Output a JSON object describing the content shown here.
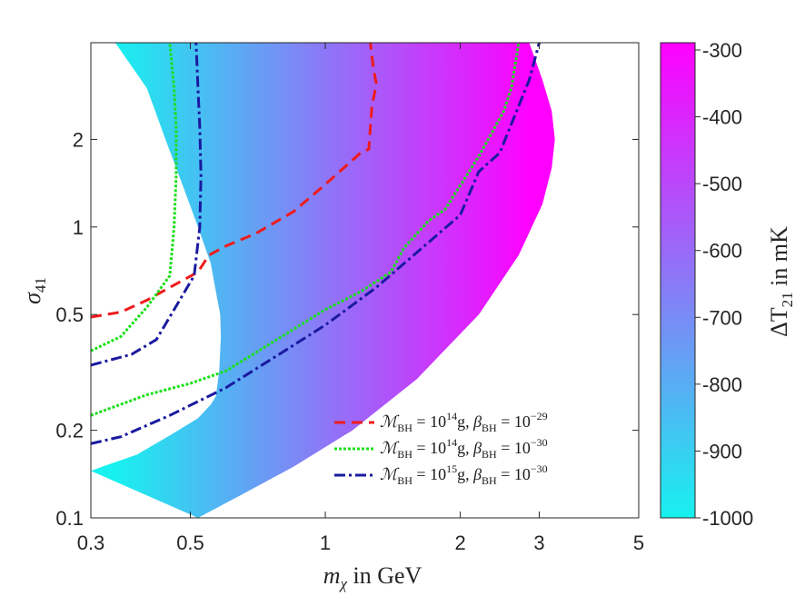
{
  "chart_data": {
    "type": "line",
    "x_scale": "log",
    "y_scale": "log",
    "xlim": [
      0.3,
      5
    ],
    "ylim": [
      0.1,
      4.3
    ],
    "xticks": [
      {
        "value": 0.3,
        "label": "0.3"
      },
      {
        "value": 0.5,
        "label": "0.5"
      },
      {
        "value": 1,
        "label": "1"
      },
      {
        "value": 2,
        "label": "2"
      },
      {
        "value": 3,
        "label": "3"
      },
      {
        "value": 5,
        "label": "5"
      }
    ],
    "yticks": [
      {
        "value": 0.1,
        "label": "0.1"
      },
      {
        "value": 0.2,
        "label": "0.2"
      },
      {
        "value": 0.5,
        "label": "0.5"
      },
      {
        "value": 1,
        "label": "1"
      },
      {
        "value": 2,
        "label": "2"
      }
    ],
    "xlabel_var": "m",
    "xlabel_sub": "χ",
    "xlabel_rest": " in GeV",
    "ylabel_var": "σ",
    "ylabel_sub": "41",
    "colorbar": {
      "label_var": "ΔT",
      "label_sub": "21",
      "label_rest": " in mK",
      "range": [
        -1000,
        -300
      ],
      "ticks": [
        "-300",
        "-400",
        "-500",
        "-600",
        "-700",
        "-800",
        "-900",
        "-1000"
      ],
      "color_low": "#17f1ef",
      "color_high": "#ff00ff"
    },
    "region": {
      "name": "ΔT21 allowed region",
      "left_boundary": [
        [
          0.34,
          4.3
        ],
        [
          0.4,
          3.0
        ],
        [
          0.44,
          2.0
        ],
        [
          0.48,
          1.4
        ],
        [
          0.52,
          1.0
        ],
        [
          0.555,
          0.75
        ],
        [
          0.57,
          0.6
        ],
        [
          0.583,
          0.5
        ],
        [
          0.585,
          0.42
        ],
        [
          0.58,
          0.32
        ],
        [
          0.57,
          0.262
        ],
        [
          0.555,
          0.245
        ],
        [
          0.52,
          0.22
        ],
        [
          0.45,
          0.192
        ],
        [
          0.38,
          0.165
        ],
        [
          0.33,
          0.153
        ],
        [
          0.3,
          0.145
        ]
      ],
      "right_boundary": [
        [
          2.85,
          4.3
        ],
        [
          3.05,
          3.2
        ],
        [
          3.2,
          2.5
        ],
        [
          3.25,
          2.0
        ],
        [
          3.2,
          1.6
        ],
        [
          3.05,
          1.2
        ],
        [
          2.7,
          0.8
        ],
        [
          2.2,
          0.5
        ],
        [
          1.6,
          0.3
        ],
        [
          1.15,
          0.2
        ],
        [
          0.85,
          0.15
        ],
        [
          0.65,
          0.12
        ],
        [
          0.52,
          0.1
        ]
      ]
    },
    "series": [
      {
        "name": "M_BH = 10^14 g, beta_BH = 10^-29",
        "color": "#ee1b1b",
        "dash": "12 7",
        "points": [
          [
            0.3,
            0.49
          ],
          [
            0.35,
            0.51
          ],
          [
            0.4,
            0.56
          ],
          [
            0.45,
            0.62
          ],
          [
            0.52,
            0.7
          ],
          [
            0.55,
            0.8
          ],
          [
            0.6,
            0.86
          ],
          [
            0.7,
            0.95
          ],
          [
            0.85,
            1.13
          ],
          [
            1.0,
            1.4
          ],
          [
            1.2,
            1.8
          ],
          [
            1.25,
            1.85
          ],
          [
            1.27,
            2.6
          ],
          [
            1.3,
            3.1
          ],
          [
            1.28,
            3.5
          ],
          [
            1.26,
            4.3
          ]
        ]
      },
      {
        "name": "M_BH = 10^14 g, beta_BH = 10^-30, upper",
        "color": "#19e019",
        "dash": "3 2",
        "points": [
          [
            0.3,
            0.375
          ],
          [
            0.35,
            0.42
          ],
          [
            0.4,
            0.53
          ],
          [
            0.45,
            0.68
          ],
          [
            0.46,
            1.0
          ],
          [
            0.465,
            1.5
          ],
          [
            0.465,
            2.2
          ],
          [
            0.46,
            3.0
          ],
          [
            0.45,
            4.3
          ]
        ]
      },
      {
        "name": "M_BH = 10^14 g, beta_BH = 10^-30",
        "color": "#19e019",
        "dash": "3 2",
        "points": [
          [
            0.3,
            0.225
          ],
          [
            0.4,
            0.265
          ],
          [
            0.5,
            0.29
          ],
          [
            0.6,
            0.32
          ],
          [
            0.8,
            0.42
          ],
          [
            1.0,
            0.52
          ],
          [
            1.2,
            0.6
          ],
          [
            1.4,
            0.7
          ],
          [
            1.5,
            0.85
          ],
          [
            1.7,
            1.05
          ],
          [
            1.85,
            1.15
          ],
          [
            2.2,
            1.75
          ],
          [
            2.5,
            2.5
          ],
          [
            2.6,
            3.0
          ],
          [
            2.7,
            4.3
          ]
        ]
      },
      {
        "name": "M_BH = 10^15 g, beta_BH = 10^-30, upper",
        "color": "#1a1aa0",
        "dash": "12 4 3 4",
        "points": [
          [
            0.3,
            0.335
          ],
          [
            0.37,
            0.365
          ],
          [
            0.42,
            0.41
          ],
          [
            0.51,
            0.68
          ],
          [
            0.525,
            1.0
          ],
          [
            0.528,
            1.5
          ],
          [
            0.525,
            2.2
          ],
          [
            0.52,
            3.0
          ],
          [
            0.515,
            4.3
          ]
        ]
      },
      {
        "name": "M_BH = 10^15 g, beta_BH = 10^-30",
        "color": "#1a1aa0",
        "dash": "12 4 3 4",
        "points": [
          [
            0.3,
            0.18
          ],
          [
            0.35,
            0.19
          ],
          [
            0.45,
            0.225
          ],
          [
            0.6,
            0.28
          ],
          [
            0.8,
            0.37
          ],
          [
            1.0,
            0.46
          ],
          [
            1.3,
            0.62
          ],
          [
            1.5,
            0.75
          ],
          [
            2.0,
            1.1
          ],
          [
            2.2,
            1.55
          ],
          [
            2.45,
            1.8
          ],
          [
            2.75,
            2.8
          ],
          [
            2.85,
            3.2
          ],
          [
            3.0,
            4.3
          ]
        ]
      }
    ],
    "legend": {
      "position": "bottom-right",
      "entries": [
        {
          "color": "#ee1b1b",
          "dash": "12 7",
          "m_exp": "14",
          "b_exp": "−29"
        },
        {
          "color": "#19e019",
          "dash": "3 2",
          "m_exp": "14",
          "b_exp": "−30"
        },
        {
          "color": "#1a1aa0",
          "dash": "12 4 3 4",
          "m_exp": "15",
          "b_exp": "−30"
        }
      ],
      "m_symbol": "ℳ",
      "b_symbol": "β",
      "sub": "BH",
      "eq": " = 10",
      "unit": "g, "
    }
  }
}
